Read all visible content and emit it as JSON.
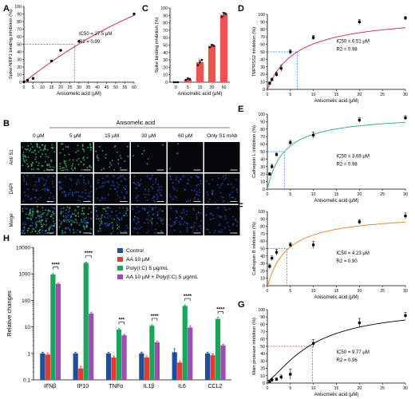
{
  "panel_letters": {
    "a": "A",
    "b": "B",
    "c": "C",
    "d": "D",
    "e": "E",
    "f": "F",
    "g": "G",
    "h": "H"
  },
  "chart_data": [
    {
      "id": "A",
      "type": "scatter",
      "xlabel": "Anisomelic acid (μM)",
      "ylabel": "Spike-NRP1 binding inhibition (%)",
      "xlim": [
        0,
        60
      ],
      "ylim": [
        0,
        100
      ],
      "xticks": [
        0,
        5,
        10,
        15,
        20,
        25,
        30,
        35,
        40,
        45,
        50,
        55,
        60
      ],
      "yticks": [
        0,
        10,
        20,
        30,
        40,
        50,
        60,
        70,
        80,
        90,
        100
      ],
      "x": [
        0,
        2,
        5,
        15,
        20,
        30,
        60
      ],
      "y": [
        0.5,
        2.5,
        5,
        28,
        42,
        54,
        90
      ],
      "fit": {
        "x0": 0,
        "y0": 0,
        "x1": 60,
        "y1": 88
      },
      "ic50": 27.5,
      "annotation": [
        "IC50 = 27.5 μM",
        "R2 = 0.99"
      ],
      "line_color": "#c2185b",
      "marker_color": "#000000"
    },
    {
      "id": "C",
      "type": "bar",
      "xlabel": "Anisomelic acid (μM)",
      "ylabel": "Spike binding inhibition (%)",
      "ylim": [
        0,
        100
      ],
      "yticks": [
        0,
        10,
        20,
        30,
        40,
        50,
        60,
        70,
        80,
        90,
        100
      ],
      "categories": [
        "0",
        "5",
        "15",
        "30",
        "60"
      ],
      "values": [
        0,
        4,
        27,
        49,
        91
      ],
      "errors": [
        0,
        1.5,
        3,
        2,
        3
      ],
      "points": [
        [
          0,
          0,
          0
        ],
        [
          3,
          5,
          4
        ],
        [
          23,
          27,
          30
        ],
        [
          47,
          50,
          49
        ],
        [
          88,
          93,
          92
        ]
      ],
      "bar_color": "#ef5350"
    },
    {
      "id": "D",
      "type": "scatter",
      "xlabel": "Anisomelic acid (μM)",
      "ylabel": "TMPRSS2 inhibition (%)",
      "xlim": [
        0,
        30
      ],
      "ylim": [
        0,
        100
      ],
      "xticks": [
        0,
        5,
        10,
        15,
        20,
        25,
        30
      ],
      "yticks": [
        0,
        10,
        20,
        30,
        40,
        50,
        60,
        70,
        80,
        90,
        100
      ],
      "x": [
        0.5,
        1,
        2,
        3,
        5,
        10,
        20,
        30
      ],
      "y": [
        8,
        13,
        20,
        28,
        50,
        69,
        90,
        95
      ],
      "err": [
        2,
        2,
        3,
        4,
        3,
        3,
        3,
        2
      ],
      "ic50": 6.51,
      "annotation": [
        "IC50 = 6.51 μM",
        "R2 = 0.98"
      ],
      "line_color": "#d81b60"
    },
    {
      "id": "E",
      "type": "scatter",
      "xlabel": "Anisomelic acid (μM)",
      "ylabel": "Cathepsin L inhibition (%)",
      "xlim": [
        0,
        30
      ],
      "ylim": [
        0,
        100
      ],
      "xticks": [
        0,
        5,
        10,
        15,
        20,
        25,
        30
      ],
      "yticks": [
        0,
        10,
        20,
        30,
        40,
        50,
        60,
        70,
        80,
        90,
        100
      ],
      "x": [
        0.5,
        1,
        2,
        5,
        10,
        20,
        30
      ],
      "y": [
        20,
        30,
        46,
        62,
        72,
        92,
        95
      ],
      "err": [
        2,
        3,
        2,
        3,
        4,
        3,
        3
      ],
      "ic50": 3.69,
      "annotation": [
        "IC50 = 3.69 μM",
        "R2 = 0.98"
      ],
      "line_color": "#26a69a"
    },
    {
      "id": "F",
      "type": "scatter",
      "xlabel": "Anisomelic acid (μM)",
      "ylabel": "Cathepsin B inhibition (%)",
      "xlim": [
        0,
        30
      ],
      "ylim": [
        0,
        100
      ],
      "xticks": [
        0,
        5,
        10,
        15,
        20,
        25,
        30
      ],
      "yticks": [
        0,
        10,
        20,
        30,
        40,
        50,
        60,
        70,
        80,
        90,
        100
      ],
      "x": [
        0.5,
        1,
        2,
        5,
        10,
        20,
        30
      ],
      "y": [
        26,
        37,
        45,
        55,
        55,
        86,
        94
      ],
      "err": [
        3,
        3,
        4,
        3,
        5,
        3,
        4
      ],
      "ic50": 4.23,
      "annotation": [
        "IC50 = 4.23 μM",
        "R2 = 0.90"
      ],
      "line_color": "#e67e22"
    },
    {
      "id": "G",
      "type": "scatter",
      "xlabel": "Anisomelic acid (μM)",
      "ylabel": "Main protease inhibition (%)",
      "xlim": [
        0,
        30
      ],
      "ylim": [
        0,
        100
      ],
      "xticks": [
        0,
        5,
        10,
        15,
        20,
        25,
        30
      ],
      "yticks": [
        0,
        10,
        20,
        30,
        40,
        50,
        60,
        70,
        80,
        90,
        100
      ],
      "x": [
        0.5,
        1,
        2,
        3,
        5,
        10,
        20,
        30
      ],
      "y": [
        2,
        4,
        5,
        8,
        12,
        54,
        82,
        92
      ],
      "err": [
        1,
        2,
        2,
        3,
        7,
        5,
        6,
        4
      ],
      "ic50": 9.77,
      "annotation": [
        "IC50 = 9.77 μM",
        "R2 = 0.96"
      ],
      "line_color": "#000000"
    },
    {
      "id": "H",
      "type": "bar",
      "ylabel": "Relative changes",
      "yscale": "log",
      "ylim": [
        0.1,
        10000
      ],
      "yticks": [
        "0.1",
        "1",
        "10",
        "100",
        "1000",
        "10000"
      ],
      "categories": [
        "IFNβ",
        "IP10",
        "TNFα",
        "IL1β",
        "IL6",
        "CCL2"
      ],
      "series": [
        {
          "name": "Control",
          "color": "#1f4e9a",
          "values": [
            1,
            1,
            1,
            1,
            1.1,
            1
          ],
          "err": [
            0.1,
            0.1,
            0.1,
            0.1,
            0.4,
            0.1
          ]
        },
        {
          "name": "AA 10 μM",
          "color": "#e53935",
          "values": [
            0.9,
            0.27,
            0.7,
            0.7,
            0.45,
            0.85
          ],
          "err": [
            0.1,
            0.05,
            0.1,
            0.1,
            0.05,
            0.1
          ]
        },
        {
          "name": "Poly(I:C) 5 μg/mL",
          "color": "#1aa55a",
          "values": [
            950,
            2600,
            8,
            11,
            62,
            20
          ],
          "err": [
            80,
            200,
            0.8,
            1,
            6,
            3
          ]
        },
        {
          "name": "AA 10 μM + Poly(I:C) 5 μg/mL",
          "color": "#9c4fb0",
          "values": [
            420,
            32,
            4.8,
            2.6,
            9.5,
            2
          ],
          "err": [
            30,
            3,
            0.4,
            0.3,
            1.5,
            0.2
          ]
        }
      ],
      "significance": [
        "****",
        "****",
        "***",
        "****",
        "****",
        "****"
      ],
      "legend_position": "top-right"
    }
  ],
  "micrograph_grid": {
    "title": "Anisomelic acid",
    "columns": [
      "0 μM",
      "5 μM",
      "15 μM",
      "30 μM",
      "60 μM",
      "Only S1 mAb"
    ],
    "rows": [
      "Anti S1",
      "DAPI",
      "Merge"
    ],
    "green_level": [
      0.95,
      0.7,
      0.3,
      0.08,
      0.03,
      0.0
    ],
    "blue_level": [
      0.8,
      0.8,
      0.75,
      0.75,
      0.7,
      0.6
    ]
  }
}
